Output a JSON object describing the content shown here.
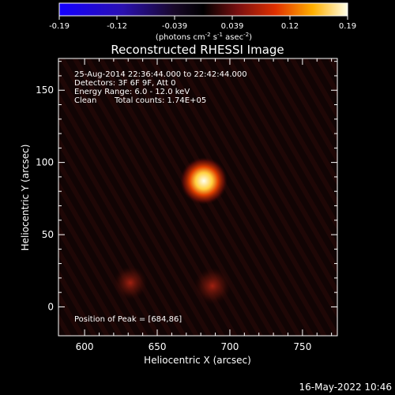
{
  "colorbar": {
    "ticks": [
      "-0.19",
      "-0.12",
      "-0.039",
      "0.039",
      "0.12",
      "0.19"
    ],
    "unit_main": "(photons cm",
    "unit_exp1": "-2",
    "unit_s": " s",
    "unit_exp2": "-1",
    "unit_asec": " asec",
    "unit_exp3": "-2",
    "unit_close": ")"
  },
  "title": "Reconstructed RHESSI Image",
  "info": {
    "time_range": "25-Aug-2014 22:36:44.000 to 22:42:44.000",
    "detectors": "Detectors: 3F 6F 9F, Att 0",
    "energy": "Energy Range: 6.0 - 12.0 keV",
    "clean_label": "Clean",
    "total_counts": "Total counts: 1.74E+05"
  },
  "peak_text": "Position of Peak = [684,86]",
  "footer_date": "16-May-2022 10:46",
  "chart_data": {
    "type": "heatmap",
    "title": "Reconstructed RHESSI Image",
    "xlabel": "Heliocentric X (arcsec)",
    "ylabel": "Heliocentric Y (arcsec)",
    "xlim": [
      582,
      774
    ],
    "ylim": [
      -20,
      172
    ],
    "xticks": [
      600,
      650,
      700,
      750
    ],
    "yticks": [
      0,
      50,
      100,
      150
    ],
    "colorbar_range": [
      -0.19,
      0.19
    ],
    "peak": {
      "x": 684,
      "y": 86,
      "value": 0.19
    },
    "secondary_sources": [
      {
        "x": 632,
        "y": 17,
        "value": 0.06
      },
      {
        "x": 684,
        "y": 14,
        "value": 0.06
      }
    ]
  }
}
